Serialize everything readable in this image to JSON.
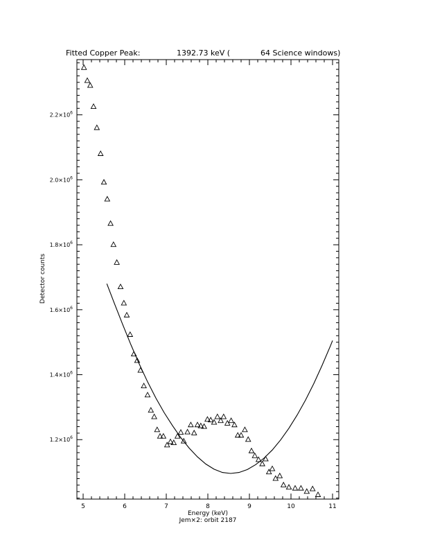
{
  "chart_data": {
    "type": "scatter",
    "title_parts": {
      "label": "Fitted Copper Peak:",
      "value": "1392.73 keV (",
      "suffix": "64 Science windows)"
    },
    "xlabel": "Energy (keV)",
    "ylabel": "Detector counts",
    "footer": "Jem×2: orbit 2187",
    "xlim": [
      4.85,
      11.15
    ],
    "ylim": [
      1017000,
      2370000
    ],
    "x_ticks": [
      5,
      6,
      7,
      8,
      9,
      10,
      11
    ],
    "x_tick_labels": [
      "5",
      "6",
      "7",
      "8",
      "9",
      "10",
      "11"
    ],
    "y_ticks": [
      1200000,
      1400000,
      1600000,
      1800000,
      2000000,
      2200000
    ],
    "y_tick_labels": [
      {
        "mant": "1.2×10",
        "exp": "6"
      },
      {
        "mant": "1.4×10",
        "exp": "6"
      },
      {
        "mant": "1.6×10",
        "exp": "6"
      },
      {
        "mant": "1.8×10",
        "exp": "6"
      },
      {
        "mant": "2.0×10",
        "exp": "6"
      },
      {
        "mant": "2.2×10",
        "exp": "6"
      }
    ],
    "grid": false,
    "series": [
      {
        "marker": "triangle",
        "points": [
          [
            5.02,
            2345000
          ],
          [
            5.1,
            2305000
          ],
          [
            5.17,
            2290000
          ],
          [
            5.25,
            2225000
          ],
          [
            5.33,
            2160000
          ],
          [
            5.42,
            2080000
          ],
          [
            5.5,
            1992000
          ],
          [
            5.58,
            1940000
          ],
          [
            5.66,
            1865000
          ],
          [
            5.73,
            1800000
          ],
          [
            5.81,
            1745000
          ],
          [
            5.9,
            1670000
          ],
          [
            5.98,
            1620000
          ],
          [
            6.05,
            1583000
          ],
          [
            6.13,
            1523000
          ],
          [
            6.22,
            1463000
          ],
          [
            6.3,
            1443000
          ],
          [
            6.38,
            1413000
          ],
          [
            6.46,
            1365000
          ],
          [
            6.55,
            1337000
          ],
          [
            6.63,
            1290000
          ],
          [
            6.71,
            1270000
          ],
          [
            6.78,
            1230000
          ],
          [
            6.85,
            1210000
          ],
          [
            6.93,
            1210000
          ],
          [
            7.02,
            1183000
          ],
          [
            7.1,
            1193000
          ],
          [
            7.18,
            1190000
          ],
          [
            7.27,
            1210000
          ],
          [
            7.35,
            1222000
          ],
          [
            7.42,
            1195000
          ],
          [
            7.51,
            1223000
          ],
          [
            7.59,
            1245000
          ],
          [
            7.67,
            1220000
          ],
          [
            7.75,
            1245000
          ],
          [
            7.83,
            1242000
          ],
          [
            7.91,
            1240000
          ],
          [
            7.99,
            1262000
          ],
          [
            8.07,
            1260000
          ],
          [
            8.15,
            1253000
          ],
          [
            8.23,
            1270000
          ],
          [
            8.31,
            1258000
          ],
          [
            8.38,
            1270000
          ],
          [
            8.47,
            1250000
          ],
          [
            8.56,
            1258000
          ],
          [
            8.64,
            1245000
          ],
          [
            8.72,
            1213000
          ],
          [
            8.8,
            1213000
          ],
          [
            8.89,
            1230000
          ],
          [
            8.97,
            1200000
          ],
          [
            9.05,
            1165000
          ],
          [
            9.13,
            1150000
          ],
          [
            9.22,
            1138000
          ],
          [
            9.31,
            1125000
          ],
          [
            9.39,
            1140000
          ],
          [
            9.47,
            1100000
          ],
          [
            9.55,
            1110000
          ],
          [
            9.63,
            1080000
          ],
          [
            9.73,
            1088000
          ],
          [
            9.82,
            1060000
          ],
          [
            9.95,
            1053000
          ],
          [
            10.1,
            1050000
          ],
          [
            10.24,
            1050000
          ],
          [
            10.38,
            1040000
          ],
          [
            10.52,
            1048000
          ],
          [
            10.65,
            1030000
          ]
        ]
      },
      {
        "marker": "line",
        "points": [
          [
            5.57,
            1680000
          ],
          [
            5.75,
            1620000
          ],
          [
            5.95,
            1555000
          ],
          [
            6.15,
            1492000
          ],
          [
            6.35,
            1433000
          ],
          [
            6.55,
            1378000
          ],
          [
            6.75,
            1328000
          ],
          [
            6.95,
            1283000
          ],
          [
            7.15,
            1243000
          ],
          [
            7.35,
            1206000
          ],
          [
            7.55,
            1174000
          ],
          [
            7.75,
            1147000
          ],
          [
            7.95,
            1125000
          ],
          [
            8.15,
            1109000
          ],
          [
            8.35,
            1099000
          ],
          [
            8.55,
            1096000
          ],
          [
            8.75,
            1099000
          ],
          [
            8.95,
            1108000
          ],
          [
            9.15,
            1123000
          ],
          [
            9.35,
            1143000
          ],
          [
            9.55,
            1168000
          ],
          [
            9.75,
            1199000
          ],
          [
            9.95,
            1235000
          ],
          [
            10.15,
            1276000
          ],
          [
            10.35,
            1322000
          ],
          [
            10.55,
            1373000
          ],
          [
            10.75,
            1429000
          ],
          [
            10.95,
            1489000
          ],
          [
            11.0,
            1505000
          ]
        ]
      }
    ]
  }
}
